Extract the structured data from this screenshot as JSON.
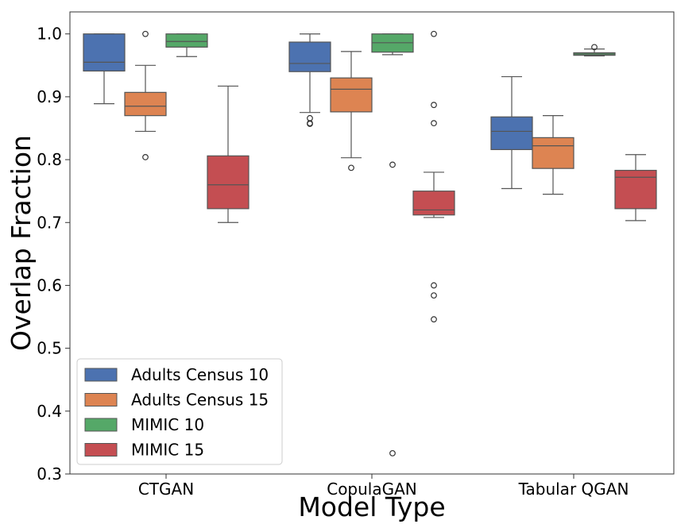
{
  "chart_data": {
    "type": "box",
    "xlabel": "Model Type",
    "ylabel": "Overlap Fraction",
    "ylim": [
      0.3,
      1.035
    ],
    "yticks": [
      "0.3",
      "0.4",
      "0.5",
      "0.6",
      "0.7",
      "0.8",
      "0.9",
      "1.0"
    ],
    "categories": [
      "CTGAN",
      "CopulaGAN",
      "Tabular QGAN"
    ],
    "legend_position": "bottom-left",
    "grid": false,
    "series": [
      {
        "name": "Adults Census 10",
        "color": "#4c72b0",
        "boxes": [
          {
            "whislo": 0.889,
            "q1": 0.941,
            "med": 0.955,
            "q3": 1.0,
            "whishi": 1.0,
            "fliers": []
          },
          {
            "whislo": 0.875,
            "q1": 0.94,
            "med": 0.953,
            "q3": 0.987,
            "whishi": 1.0,
            "fliers": [
              0.866,
              0.858,
              0.857
            ]
          },
          {
            "whislo": 0.754,
            "q1": 0.816,
            "med": 0.845,
            "q3": 0.868,
            "whishi": 0.932,
            "fliers": []
          }
        ]
      },
      {
        "name": "Adults Census 15",
        "color": "#dd8452",
        "boxes": [
          {
            "whislo": 0.845,
            "q1": 0.87,
            "med": 0.885,
            "q3": 0.907,
            "whishi": 0.95,
            "fliers": [
              1.0,
              0.804
            ]
          },
          {
            "whislo": 0.803,
            "q1": 0.876,
            "med": 0.912,
            "q3": 0.93,
            "whishi": 0.972,
            "fliers": [
              0.787
            ]
          },
          {
            "whislo": 0.745,
            "q1": 0.786,
            "med": 0.822,
            "q3": 0.835,
            "whishi": 0.87,
            "fliers": []
          }
        ]
      },
      {
        "name": "MIMIC 10",
        "color": "#55a868",
        "boxes": [
          {
            "whislo": 0.964,
            "q1": 0.979,
            "med": 0.988,
            "q3": 1.0,
            "whishi": 1.0,
            "fliers": []
          },
          {
            "whislo": 0.967,
            "q1": 0.971,
            "med": 0.986,
            "q3": 1.0,
            "whishi": 1.0,
            "fliers": [
              0.792,
              0.333
            ]
          },
          {
            "whislo": 0.965,
            "q1": 0.966,
            "med": 0.968,
            "q3": 0.97,
            "whishi": 0.976,
            "fliers": [
              0.979
            ]
          }
        ]
      },
      {
        "name": "MIMIC 15",
        "color": "#c44e52",
        "boxes": [
          {
            "whislo": 0.7,
            "q1": 0.722,
            "med": 0.76,
            "q3": 0.806,
            "whishi": 0.917,
            "fliers": []
          },
          {
            "whislo": 0.708,
            "q1": 0.712,
            "med": 0.72,
            "q3": 0.75,
            "whishi": 0.78,
            "fliers": [
              1.0,
              0.887,
              0.858,
              0.6,
              0.584,
              0.546
            ]
          },
          {
            "whislo": 0.703,
            "q1": 0.722,
            "med": 0.772,
            "q3": 0.783,
            "whishi": 0.808,
            "fliers": []
          }
        ]
      }
    ]
  }
}
